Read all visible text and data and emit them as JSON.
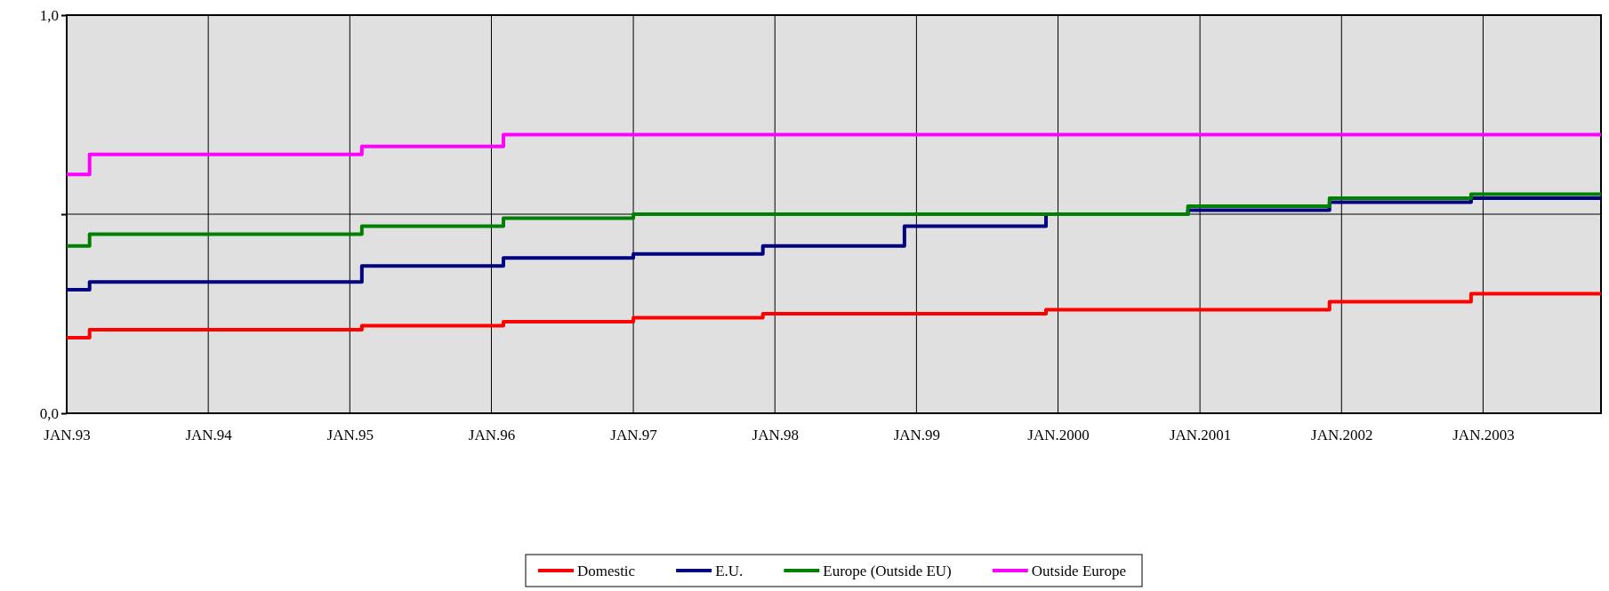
{
  "chart_data": {
    "type": "step",
    "xlim": [
      "1993-01",
      "2003-11"
    ],
    "ylim": [
      0,
      1
    ],
    "yticks": [
      {
        "value": 0,
        "label": "0,0"
      },
      {
        "value": 0.5,
        "label": null
      },
      {
        "value": 1,
        "label": "1,0"
      }
    ],
    "xticks": [
      {
        "value": "1993-01",
        "label": "JAN.93"
      },
      {
        "value": "1994-01",
        "label": "JAN.94"
      },
      {
        "value": "1995-01",
        "label": "JAN.95"
      },
      {
        "value": "1996-01",
        "label": "JAN.96"
      },
      {
        "value": "1997-01",
        "label": "JAN.97"
      },
      {
        "value": "1998-01",
        "label": "JAN.98"
      },
      {
        "value": "1999-01",
        "label": "JAN.99"
      },
      {
        "value": "2000-01",
        "label": "JAN.2000"
      },
      {
        "value": "2001-01",
        "label": "JAN.2001"
      },
      {
        "value": "2002-01",
        "label": "JAN.2002"
      },
      {
        "value": "2003-01",
        "label": "JAN.2003"
      }
    ],
    "grid": true,
    "legend": "bottom",
    "line_style": "solid",
    "marker": "none",
    "series": [
      {
        "name": "Domestic",
        "color": "#ff0000",
        "x": [
          "1993-01",
          "1993-03",
          "1995-02",
          "1996-02",
          "1997-01",
          "1997-12",
          "1998-12",
          "1999-12",
          "2000-12",
          "2001-12",
          "2002-12",
          "2003-11"
        ],
        "values": [
          0.19,
          0.21,
          0.22,
          0.23,
          0.24,
          0.25,
          0.25,
          0.26,
          0.26,
          0.28,
          0.3,
          0.3
        ]
      },
      {
        "name": "E.U.",
        "color": "#000080",
        "x": [
          "1993-01",
          "1993-03",
          "1995-02",
          "1996-02",
          "1997-01",
          "1997-12",
          "1998-12",
          "1999-12",
          "2000-12",
          "2001-12",
          "2002-12",
          "2003-11"
        ],
        "values": [
          0.31,
          0.33,
          0.37,
          0.39,
          0.4,
          0.42,
          0.47,
          0.5,
          0.51,
          0.53,
          0.54,
          0.54
        ]
      },
      {
        "name": "Europe (Outside EU)",
        "color": "#008000",
        "x": [
          "1993-01",
          "1993-03",
          "1995-02",
          "1996-02",
          "1997-01",
          "2000-12",
          "2001-12",
          "2002-12",
          "2003-11"
        ],
        "values": [
          0.42,
          0.45,
          0.47,
          0.49,
          0.5,
          0.52,
          0.54,
          0.55,
          0.55
        ]
      },
      {
        "name": "Outside Europe",
        "color": "#ff00ff",
        "x": [
          "1993-01",
          "1993-03",
          "1995-02",
          "1996-02",
          "2003-11"
        ],
        "values": [
          0.6,
          0.65,
          0.67,
          0.7,
          0.7
        ]
      }
    ]
  }
}
